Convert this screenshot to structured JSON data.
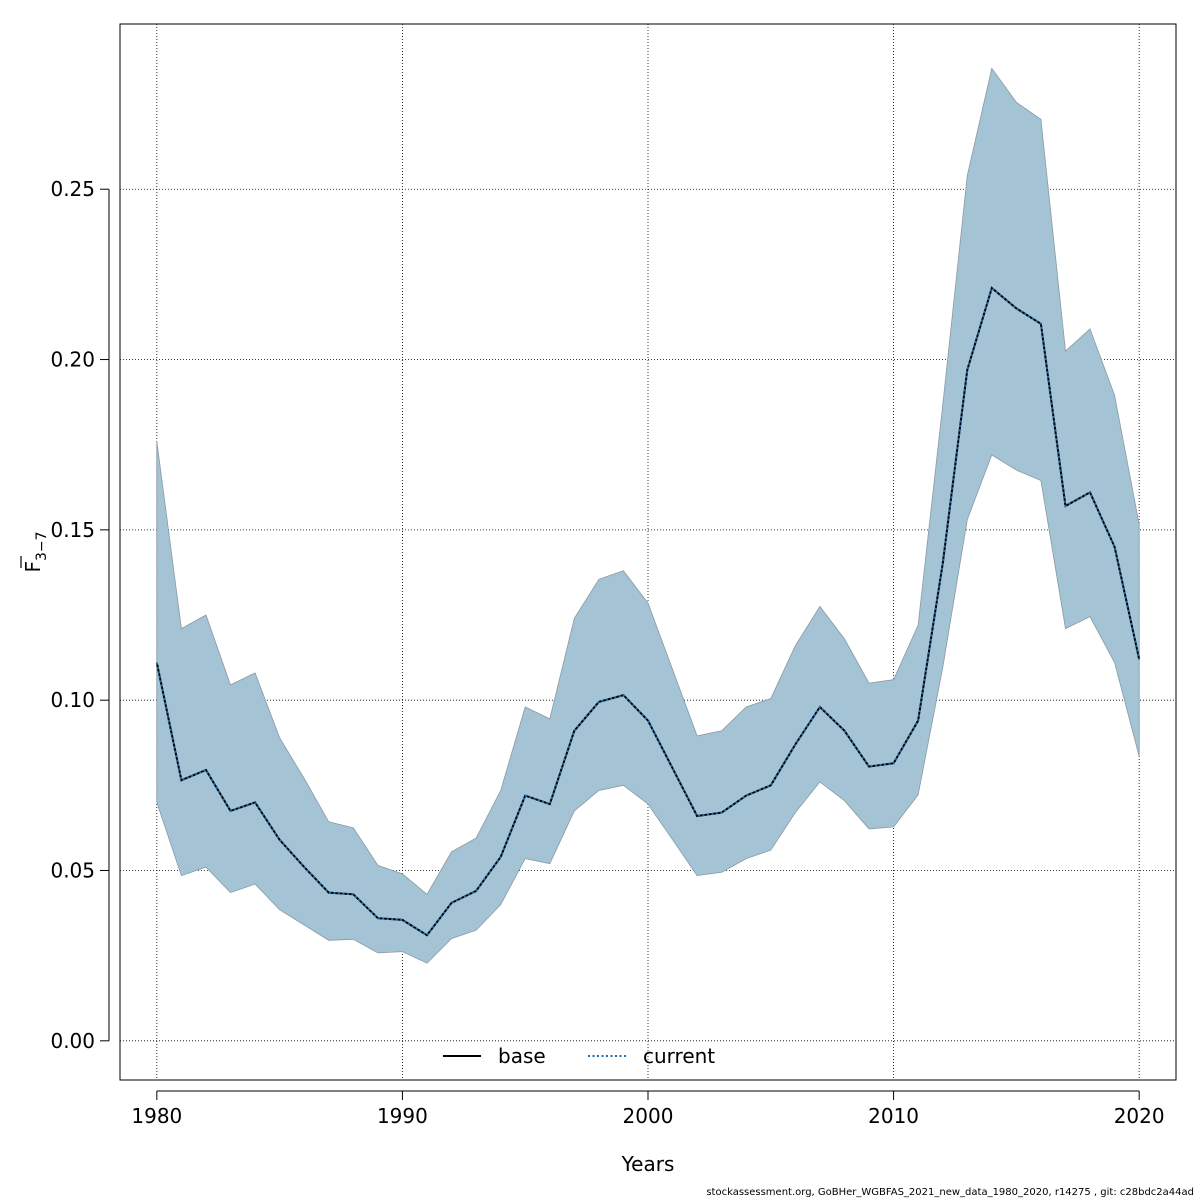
{
  "footer_text": "stockassessment.org, GoBHer_WGBFAS_2021_new_data_1980_2020, r14275 , git: c28bdc2a44ad",
  "colors": {
    "band": "#a4c3d5",
    "band_edge": "#8a9aa4",
    "base_line": "#000000",
    "current_line": "#1f6fae",
    "grid": "#000000"
  },
  "chart_data": {
    "type": "line",
    "xlabel": "Years",
    "ylabel_main": "F",
    "ylabel_sub": "3−7",
    "ylabel_overline": true,
    "xlim": [
      1978.5,
      2021.5
    ],
    "ylim": [
      -0.0115,
      0.2985
    ],
    "x_ticks": [
      1980,
      1990,
      2000,
      2010,
      2020
    ],
    "y_ticks": [
      0.0,
      0.05,
      0.1,
      0.15,
      0.2,
      0.25
    ],
    "y_tick_labels": [
      "0.00",
      "0.05",
      "0.10",
      "0.15",
      "0.20",
      "0.25"
    ],
    "grid": true,
    "legend_position": "bottom",
    "x": [
      1980,
      1981,
      1982,
      1983,
      1984,
      1985,
      1986,
      1987,
      1988,
      1989,
      1990,
      1991,
      1992,
      1993,
      1994,
      1995,
      1996,
      1997,
      1998,
      1999,
      2000,
      2001,
      2002,
      2003,
      2004,
      2005,
      2006,
      2007,
      2008,
      2009,
      2010,
      2011,
      2012,
      2013,
      2014,
      2015,
      2016,
      2017,
      2018,
      2019,
      2020
    ],
    "series": [
      {
        "name": "base",
        "style": "solid",
        "values": [
          0.111,
          0.0765,
          0.0795,
          0.0675,
          0.07,
          0.059,
          0.051,
          0.0435,
          0.043,
          0.036,
          0.0355,
          0.031,
          0.0405,
          0.044,
          0.054,
          0.072,
          0.0695,
          0.091,
          0.0995,
          0.1015,
          0.094,
          0.08,
          0.066,
          0.067,
          0.072,
          0.075,
          0.087,
          0.098,
          0.091,
          0.0805,
          0.0815,
          0.094,
          0.14,
          0.197,
          0.221,
          0.215,
          0.2105,
          0.157,
          0.161,
          0.145,
          0.112
        ]
      },
      {
        "name": "current",
        "style": "dotted",
        "values": [
          0.111,
          0.0765,
          0.0795,
          0.0675,
          0.07,
          0.059,
          0.051,
          0.0435,
          0.043,
          0.036,
          0.0355,
          0.031,
          0.0405,
          0.044,
          0.054,
          0.072,
          0.0695,
          0.091,
          0.0995,
          0.1015,
          0.094,
          0.08,
          0.066,
          0.067,
          0.072,
          0.075,
          0.087,
          0.098,
          0.091,
          0.0805,
          0.0815,
          0.094,
          0.14,
          0.197,
          0.221,
          0.215,
          0.2105,
          0.157,
          0.161,
          0.145,
          0.112
        ]
      }
    ],
    "band_lower": [
      0.07,
      0.0485,
      0.051,
      0.0435,
      0.046,
      0.0385,
      0.034,
      0.0295,
      0.0298,
      0.0258,
      0.0262,
      0.0228,
      0.03,
      0.0325,
      0.04,
      0.0535,
      0.052,
      0.0675,
      0.0735,
      0.075,
      0.0695,
      0.059,
      0.0485,
      0.0495,
      0.0535,
      0.056,
      0.067,
      0.076,
      0.0705,
      0.0622,
      0.0628,
      0.0722,
      0.1095,
      0.153,
      0.172,
      0.1675,
      0.1645,
      0.121,
      0.1245,
      0.111,
      0.0835
    ],
    "band_upper": [
      0.176,
      0.121,
      0.125,
      0.1045,
      0.108,
      0.089,
      0.077,
      0.0643,
      0.0625,
      0.0515,
      0.049,
      0.043,
      0.0555,
      0.0595,
      0.0735,
      0.098,
      0.0945,
      0.124,
      0.1355,
      0.138,
      0.1285,
      0.109,
      0.0895,
      0.091,
      0.098,
      0.1005,
      0.116,
      0.1275,
      0.118,
      0.105,
      0.106,
      0.122,
      0.1865,
      0.254,
      0.2855,
      0.2755,
      0.2705,
      0.2025,
      0.209,
      0.1895,
      0.1515
    ]
  }
}
